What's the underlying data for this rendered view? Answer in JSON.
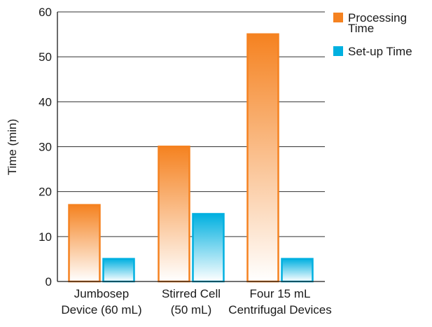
{
  "chart_data": {
    "type": "bar",
    "title": "",
    "xlabel": "",
    "ylabel": "Time (min)",
    "ylim": [
      0,
      60
    ],
    "yticks": [
      0,
      10,
      20,
      30,
      40,
      50,
      60
    ],
    "grid": true,
    "legend_position": "top-right",
    "categories": [
      {
        "line1": "Jumbosep",
        "line2": "Device (60 mL)"
      },
      {
        "line1": "Stirred Cell",
        "line2": "(50 mL)"
      },
      {
        "line1": "Four 15 mL",
        "line2": "Centrifugal Devices"
      }
    ],
    "series": [
      {
        "name": "Processing Time",
        "legend_lines": [
          "Processing",
          "Time"
        ],
        "color": "#f58220",
        "values": [
          17.2,
          30.2,
          55.2
        ]
      },
      {
        "name": "Set-up Time",
        "legend_lines": [
          "Set-up Time"
        ],
        "color": "#00b0e0",
        "values": [
          5.2,
          15.2,
          5.2
        ]
      }
    ]
  }
}
